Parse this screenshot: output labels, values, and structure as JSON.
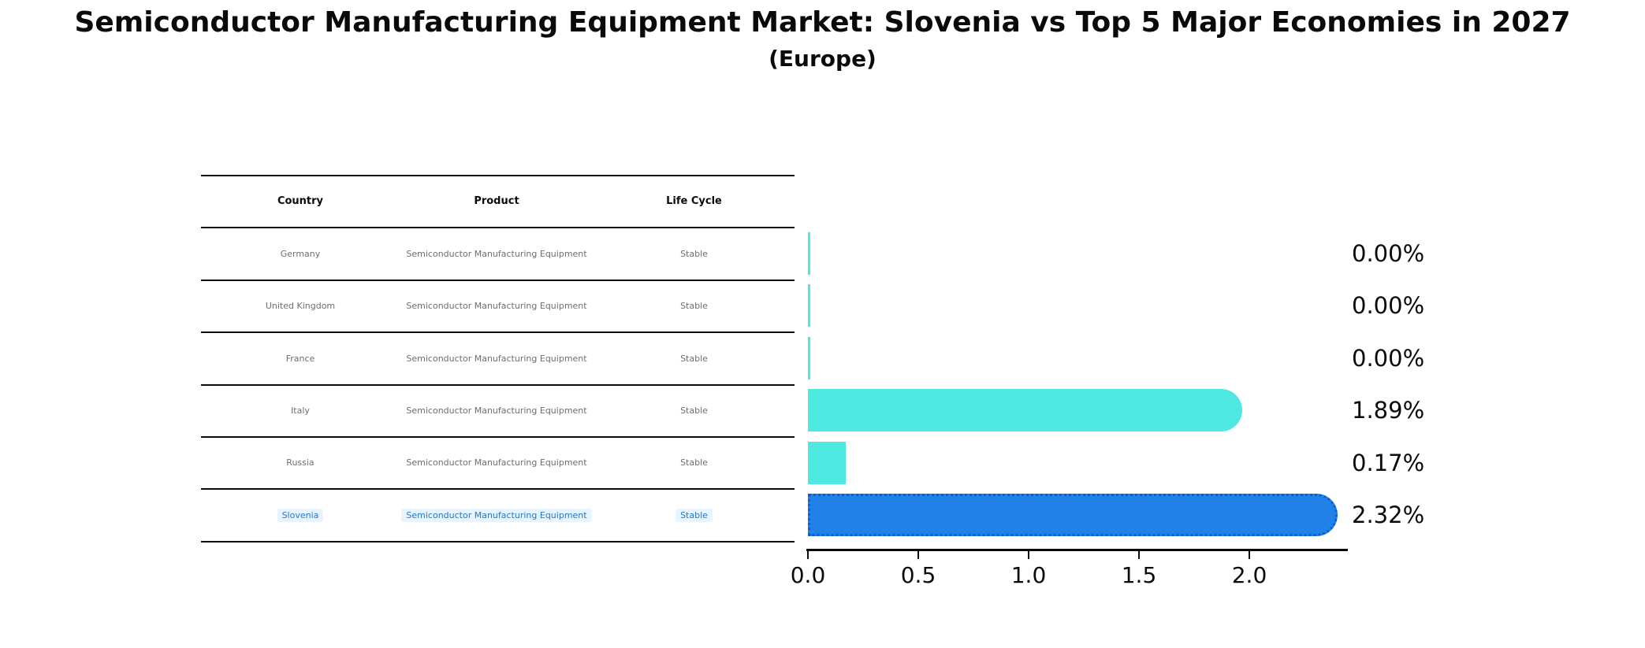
{
  "title": "Semiconductor Manufacturing Equipment Market: Slovenia vs Top 5 Major Economies in 2027",
  "subtitle": "(Europe)",
  "table": {
    "headers": [
      "Country",
      "Product",
      "Life Cycle"
    ],
    "rows": [
      {
        "country": "Germany",
        "product": "Semiconductor Manufacturing Equipment",
        "life_cycle": "Stable"
      },
      {
        "country": "United Kingdom",
        "product": "Semiconductor Manufacturing Equipment",
        "life_cycle": "Stable"
      },
      {
        "country": "France",
        "product": "Semiconductor Manufacturing Equipment",
        "life_cycle": "Stable"
      },
      {
        "country": "Italy",
        "product": "Semiconductor Manufacturing Equipment",
        "life_cycle": "Stable"
      },
      {
        "country": "Russia",
        "product": "Semiconductor Manufacturing Equipment",
        "life_cycle": "Stable"
      },
      {
        "country": "Slovenia",
        "product": "Semiconductor Manufacturing Equipment",
        "life_cycle": "Stable"
      }
    ],
    "highlighted_row": "Slovenia"
  },
  "chart_data": {
    "type": "bar",
    "orientation": "horizontal",
    "title": "Semiconductor Manufacturing Equipment Market: Slovenia vs Top 5 Major Economies in 2027",
    "subtitle": "(Europe)",
    "categories": [
      "Germany",
      "United Kingdom",
      "France",
      "Italy",
      "Russia",
      "Slovenia"
    ],
    "values": [
      0.0,
      0.0,
      0.0,
      1.89,
      0.17,
      2.32
    ],
    "value_labels": [
      "0.00%",
      "0.00%",
      "0.00%",
      "1.89%",
      "0.17%",
      "2.32%"
    ],
    "xticks": [
      0.0,
      0.5,
      1.0,
      1.5,
      2.0
    ],
    "xtick_labels": [
      "0.0",
      "0.5",
      "1.0",
      "1.5",
      "2.0"
    ],
    "xlim": [
      0,
      2.45
    ],
    "unit": "percent",
    "grid": false,
    "legend": false,
    "colors": {
      "bar": "#4DE8E0",
      "highlight_bar": "#2082E8",
      "highlight_edge": "#0D5FD0",
      "highlight_text": "#2478CC",
      "table_text": "#6E6E6E"
    }
  }
}
